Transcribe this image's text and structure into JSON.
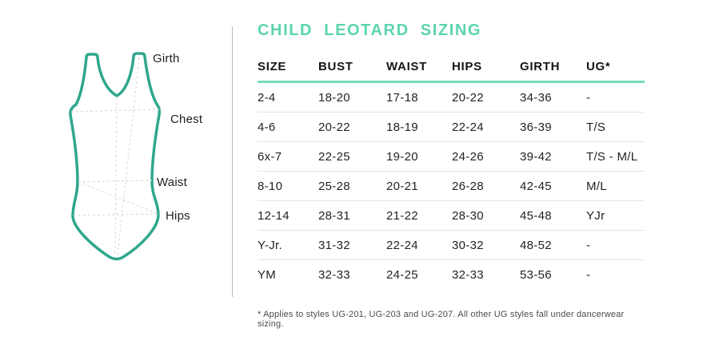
{
  "title": "CHILD LEOTARD SIZING",
  "colors": {
    "title_mint": "#5BD4AF",
    "header_rule_mint": "#76DBBC",
    "leotard_stroke_teal": "#2EA78C",
    "guide_dash_gray": "#dcdcdc",
    "row_separator_gray": "#e4e4e4",
    "divider_gray": "#bcbcbc",
    "text_dark": "#1f1f1f"
  },
  "diagram": {
    "labels": [
      {
        "text": "Girth"
      },
      {
        "text": "Chest"
      },
      {
        "text": "Waist"
      },
      {
        "text": "Hips"
      }
    ]
  },
  "chart_data": {
    "type": "table",
    "title": "CHILD LEOTARD SIZING",
    "columns": [
      "SIZE",
      "BUST",
      "WAIST",
      "HIPS",
      "GIRTH",
      "UG*"
    ],
    "rows": [
      [
        "2-4",
        "18-20",
        "17-18",
        "20-22",
        "34-36",
        "-"
      ],
      [
        "4-6",
        "20-22",
        "18-19",
        "22-24",
        "36-39",
        "T/S"
      ],
      [
        "6x-7",
        "22-25",
        "19-20",
        "24-26",
        "39-42",
        "T/S - M/L"
      ],
      [
        "8-10",
        "25-28",
        "20-21",
        "26-28",
        "42-45",
        "M/L"
      ],
      [
        "12-14",
        "28-31",
        "21-22",
        "28-30",
        "45-48",
        "YJr"
      ],
      [
        "Y-Jr.",
        "31-32",
        "22-24",
        "30-32",
        "48-52",
        "-"
      ],
      [
        "YM",
        "32-33",
        "24-25",
        "32-33",
        "53-56",
        "-"
      ]
    ],
    "footnote": "* Applies to styles UG-201, UG-203 and UG-207. All other UG styles fall under dancerwear sizing."
  }
}
